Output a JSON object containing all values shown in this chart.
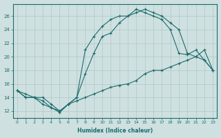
{
  "xlabel": "Humidex (Indice chaleur)",
  "background_color": "#cfe0e0",
  "grid_color": "#adc8c8",
  "line_color": "#1a6b6b",
  "xlim": [
    -0.5,
    23.5
  ],
  "ylim": [
    11.0,
    27.8
  ],
  "xticks": [
    0,
    1,
    2,
    3,
    4,
    5,
    6,
    7,
    8,
    9,
    10,
    11,
    12,
    13,
    14,
    15,
    16,
    17,
    18,
    19,
    20,
    21,
    22,
    23
  ],
  "yticks": [
    12,
    14,
    16,
    18,
    20,
    22,
    24,
    26
  ],
  "line1_x": [
    0,
    1,
    2,
    3,
    4,
    5,
    6,
    7,
    8,
    9,
    10,
    11,
    12,
    13,
    14,
    15,
    16,
    17,
    18,
    19,
    20,
    21,
    22,
    23
  ],
  "line1_y": [
    15,
    14,
    14,
    13,
    12.5,
    11.8,
    13,
    14,
    17.5,
    20.5,
    23,
    23.5,
    25,
    26,
    26.5,
    27,
    26.5,
    26,
    25,
    24,
    20.5,
    20,
    19.5,
    18
  ],
  "line2_x": [
    0,
    1,
    2,
    3,
    4,
    5,
    6,
    7,
    8,
    9,
    10,
    11,
    12,
    13,
    14,
    15,
    16,
    17,
    18,
    19,
    20,
    21,
    22,
    23
  ],
  "line2_y": [
    15,
    14,
    14,
    13.5,
    12.5,
    12,
    13,
    14,
    21,
    23,
    24.5,
    25.5,
    26,
    26,
    27,
    26.5,
    26,
    25.5,
    24,
    20.5,
    20.3,
    21,
    19.5,
    18
  ],
  "line3_x": [
    0,
    1,
    2,
    3,
    4,
    5,
    6,
    7,
    8,
    9,
    10,
    11,
    12,
    13,
    14,
    15,
    16,
    17,
    18,
    19,
    20,
    21,
    22,
    23
  ],
  "line3_y": [
    15,
    14.5,
    14,
    14,
    13,
    12,
    13,
    13.5,
    14,
    14.5,
    15,
    15.5,
    15.8,
    16,
    16.5,
    17.5,
    18,
    18,
    18.5,
    19,
    19.5,
    20,
    21,
    18
  ]
}
